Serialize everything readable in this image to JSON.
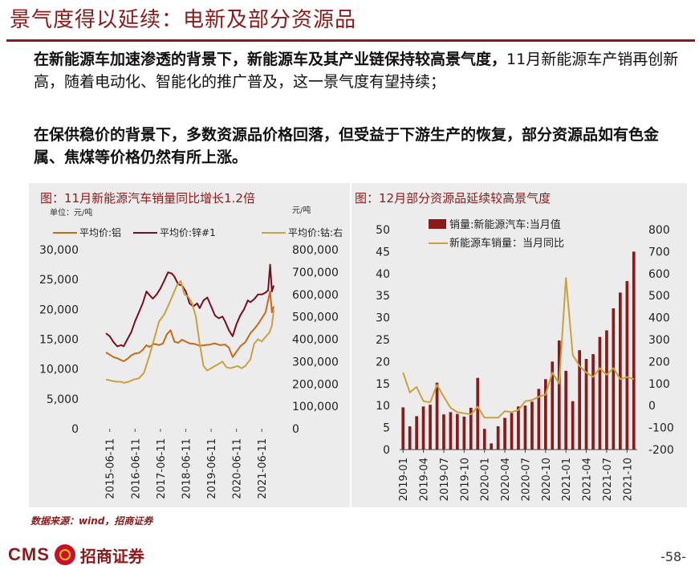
{
  "slide": {
    "title": "景气度得以延续：电新及部分资源品",
    "para1_bold": "在新能源车加速渗透的背景下，新能源车及其产业链保持较高景气度，",
    "para1_rest": "11月新能源车产销再创新高，随着电动化、智能化的推广普及，这一景气度有望持续；",
    "para2": "在保供稳价的背景下，多数资源品价格回落，但受益于下游生产的恢复，部分资源品如有色金属、焦煤等价格仍然有所上涨。",
    "source": "数据来源：wind，招商证券",
    "logo_text": "CMS",
    "logo_cn": "招商证券",
    "page_number": "-58-"
  },
  "chart_data": [
    {
      "type": "line",
      "title": "图：11月新能源汽车销量同比增长1.2倍",
      "unit_left": "单位：元/吨",
      "unit_right": "元/吨",
      "x_tick_labels": [
        "2015-06-11",
        "2016-06-11",
        "2017-06-11",
        "2018-06-11",
        "2019-06-11",
        "2020-06-11",
        "2021-06-11"
      ],
      "x_range": [
        2015.3,
        2021.95
      ],
      "ylim_left": [
        0,
        30000
      ],
      "yticks_left": [
        "0",
        "5,000",
        "10,000",
        "15,000",
        "20,000",
        "25,000",
        "30,000"
      ],
      "ylim_right": [
        0,
        800000
      ],
      "yticks_right": [
        "0",
        "100,000",
        "200,000",
        "300,000",
        "400,000",
        "500,000",
        "600,000",
        "700,000",
        "800,000"
      ],
      "series": [
        {
          "name": "平均价:铝",
          "axis": "left",
          "color": "#C86A14",
          "x": [
            2015.3,
            2015.45,
            2015.6,
            2015.75,
            2015.9,
            2016.0,
            2016.15,
            2016.3,
            2016.45,
            2016.6,
            2016.75,
            2016.9,
            2017.0,
            2017.2,
            2017.4,
            2017.55,
            2017.7,
            2017.85,
            2018.0,
            2018.15,
            2018.3,
            2018.45,
            2018.6,
            2018.8,
            2019.0,
            2019.2,
            2019.4,
            2019.6,
            2019.8,
            2020.0,
            2020.15,
            2020.3,
            2020.45,
            2020.6,
            2020.8,
            2021.0,
            2021.15,
            2021.3,
            2021.45,
            2021.6,
            2021.7,
            2021.78,
            2021.85,
            2021.92
          ],
          "values": [
            12800,
            12400,
            12000,
            11800,
            11500,
            11300,
            11700,
            12300,
            12600,
            12700,
            13200,
            14000,
            13700,
            14200,
            14000,
            14300,
            15800,
            16500,
            14600,
            14400,
            14900,
            14600,
            14300,
            14200,
            13900,
            14000,
            14100,
            14300,
            14000,
            14100,
            13600,
            12000,
            12900,
            13800,
            14500,
            16000,
            16700,
            17500,
            18500,
            19500,
            21500,
            23000,
            19500,
            20500
          ]
        },
        {
          "name": "平均价:锌#1",
          "axis": "left",
          "color": "#7A0E1A",
          "x": [
            2015.3,
            2015.45,
            2015.6,
            2015.75,
            2015.9,
            2016.0,
            2016.15,
            2016.3,
            2016.45,
            2016.6,
            2016.75,
            2016.9,
            2017.0,
            2017.15,
            2017.3,
            2017.45,
            2017.6,
            2017.75,
            2017.9,
            2018.0,
            2018.15,
            2018.3,
            2018.45,
            2018.6,
            2018.75,
            2018.9,
            2019.0,
            2019.15,
            2019.3,
            2019.45,
            2019.6,
            2019.75,
            2019.9,
            2020.0,
            2020.15,
            2020.3,
            2020.45,
            2020.6,
            2020.75,
            2020.9,
            2021.0,
            2021.15,
            2021.3,
            2021.45,
            2021.6,
            2021.7,
            2021.78,
            2021.85,
            2021.92
          ],
          "values": [
            16000,
            15500,
            14500,
            13800,
            14000,
            13800,
            15000,
            16200,
            18000,
            19500,
            21000,
            23000,
            22500,
            21800,
            22500,
            23500,
            24800,
            26200,
            26000,
            25500,
            24200,
            24000,
            23000,
            21000,
            20500,
            21000,
            20200,
            21500,
            22000,
            20500,
            19000,
            18500,
            18800,
            18000,
            16500,
            15500,
            17500,
            19000,
            20000,
            21500,
            21200,
            21700,
            22500,
            22500,
            22800,
            23200,
            27500,
            23000,
            24000
          ]
        },
        {
          "name": "平均价:钴:右",
          "axis": "right",
          "color": "#C9A13F",
          "x": [
            2015.3,
            2015.5,
            2015.7,
            2015.9,
            2016.0,
            2016.2,
            2016.4,
            2016.6,
            2016.8,
            2017.0,
            2017.2,
            2017.4,
            2017.6,
            2017.8,
            2017.95,
            2018.1,
            2018.25,
            2018.4,
            2018.55,
            2018.7,
            2018.85,
            2019.0,
            2019.15,
            2019.3,
            2019.45,
            2019.6,
            2019.75,
            2019.9,
            2020.05,
            2020.2,
            2020.35,
            2020.5,
            2020.65,
            2020.8,
            2021.0,
            2021.15,
            2021.3,
            2021.45,
            2021.6,
            2021.75,
            2021.85,
            2021.92
          ],
          "values": [
            220000,
            215000,
            210000,
            210000,
            205000,
            210000,
            220000,
            225000,
            250000,
            320000,
            400000,
            480000,
            510000,
            560000,
            600000,
            640000,
            660000,
            600000,
            590000,
            560000,
            500000,
            380000,
            280000,
            260000,
            270000,
            280000,
            290000,
            300000,
            275000,
            270000,
            275000,
            280000,
            270000,
            280000,
            310000,
            380000,
            400000,
            390000,
            410000,
            430000,
            460000,
            530000
          ]
        }
      ]
    },
    {
      "type": "bar",
      "title": "图：12月部分资源品延续较高景气度",
      "x_tick_labels": [
        "2019-01",
        "2019-04",
        "2019-07",
        "2019-10",
        "2020-01",
        "2020-04",
        "2020-07",
        "2020-10",
        "2021-01",
        "2021-04",
        "2021-07",
        "2021-10"
      ],
      "ylim_left": [
        0,
        50
      ],
      "yticks_left": [
        "0",
        "5",
        "10",
        "15",
        "20",
        "25",
        "30",
        "35",
        "40",
        "45",
        "50"
      ],
      "ylim_right": [
        -200,
        800
      ],
      "yticks_right": [
        "-200",
        "-100",
        "0",
        "100",
        "200",
        "300",
        "400",
        "500",
        "600",
        "700",
        "800"
      ],
      "series": [
        {
          "name": "销量:新能源汽车:当月值",
          "axis": "left",
          "kind": "bar",
          "color": "#8B1A1A",
          "values": [
            9.6,
            5.3,
            7.6,
            9.8,
            10.2,
            15.2,
            8.0,
            8.5,
            8.1,
            7.5,
            9.5,
            16.3,
            4.7,
            1.4,
            5.3,
            7.2,
            8.3,
            9.8,
            10.0,
            10.9,
            13.8,
            16.0,
            20.0,
            24.8,
            17.9,
            11.0,
            22.6,
            20.6,
            21.7,
            25.6,
            27.1,
            32.1,
            35.7,
            38.3,
            45.0
          ]
        },
        {
          "name": "新能源车销量：当月同比",
          "axis": "right",
          "kind": "line",
          "color": "#C9A13F",
          "values": [
            150,
            60,
            85,
            20,
            15,
            95,
            40,
            -10,
            -30,
            -35,
            -40,
            -5,
            -55,
            -55,
            -55,
            -25,
            -30,
            -20,
            20,
            25,
            40,
            50,
            150,
            100,
            580,
            230,
            180,
            150,
            130,
            170,
            140,
            170,
            120,
            130,
            120
          ]
        }
      ]
    }
  ]
}
